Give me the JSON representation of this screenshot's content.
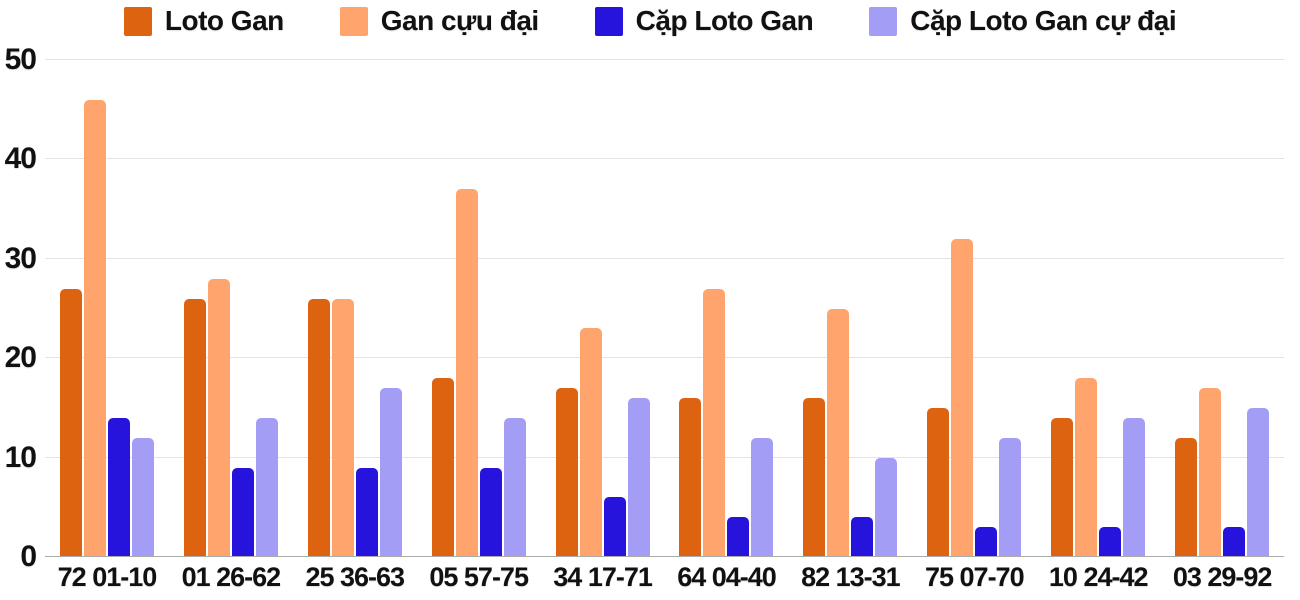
{
  "chart_data": {
    "type": "bar",
    "title": "",
    "xlabel": "",
    "ylabel": "",
    "categories": [
      "72 01-10",
      "01 26-62",
      "25 36-63",
      "05 57-75",
      "34 17-71",
      "64 04-40",
      "82 13-31",
      "75 07-70",
      "10 24-42",
      "03 29-92"
    ],
    "series": [
      {
        "name": "Loto Gan",
        "color": "#dd6310",
        "values": [
          27,
          26,
          26,
          18,
          17,
          16,
          16,
          15,
          14,
          12
        ]
      },
      {
        "name": "Gan cựu đại",
        "color": "#ffa46d",
        "values": [
          46,
          28,
          26,
          37,
          23,
          27,
          25,
          32,
          18,
          17
        ]
      },
      {
        "name": "Cặp Loto Gan",
        "color": "#2613dc",
        "values": [
          14,
          9,
          9,
          9,
          6,
          4,
          4,
          3,
          3,
          3
        ]
      },
      {
        "name": "Cặp Loto Gan cự đại",
        "color": "#a49df6",
        "values": [
          12,
          14,
          17,
          14,
          16,
          12,
          10,
          12,
          14,
          15
        ]
      }
    ],
    "ylim": [
      0,
      50
    ],
    "yticks": [
      0,
      10,
      20,
      30,
      40,
      50
    ],
    "grid": true,
    "legend_position": "top",
    "text_color": "#111111",
    "gridline_color": "#e4e4e4",
    "baseline_color": "#ababab"
  }
}
